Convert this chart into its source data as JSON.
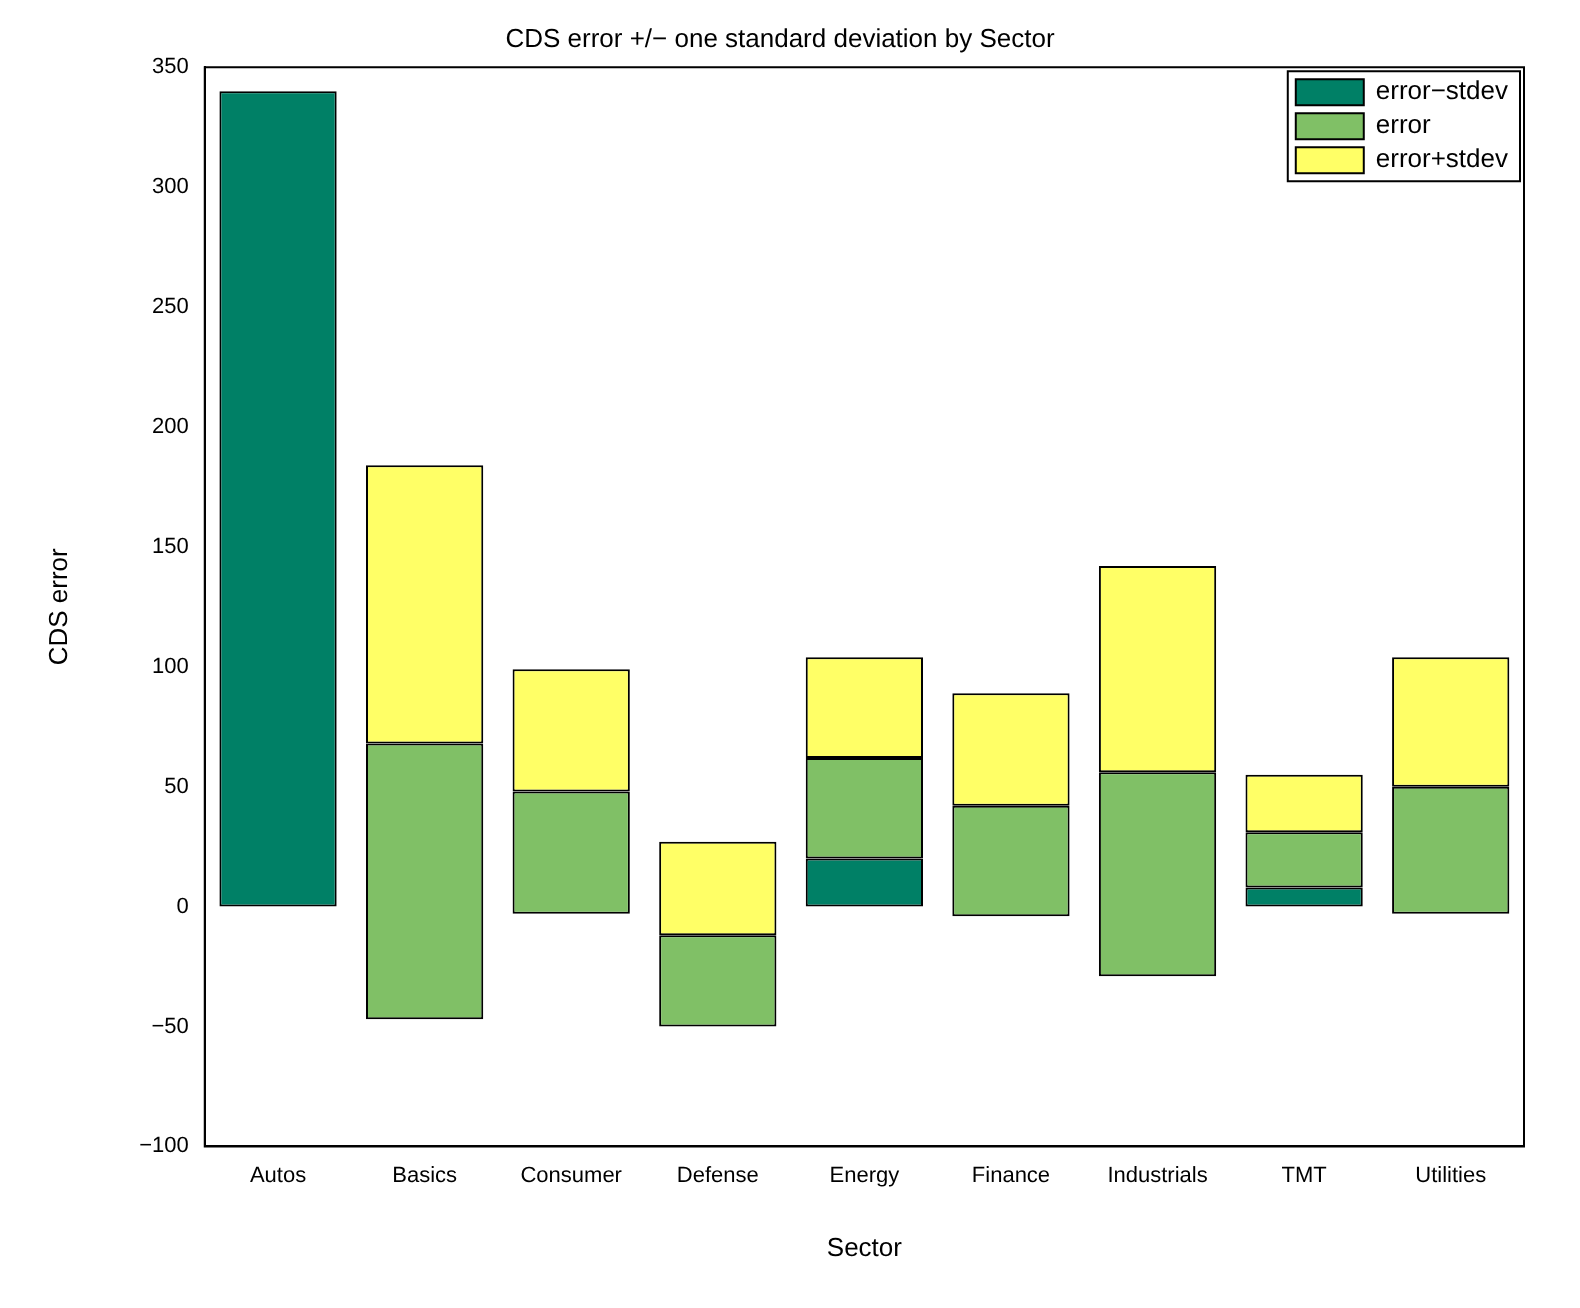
{
  "chart_data": {
    "type": "bar",
    "title": "CDS error +/− one standard deviation by Sector",
    "xlabel": "Sector",
    "ylabel": "CDS error",
    "categories": [
      "Autos",
      "Basics",
      "Consumer",
      "Defense",
      "Energy",
      "Finance",
      "Industrials",
      "TMT",
      "Utilities"
    ],
    "series": [
      {
        "name": "error−stdev",
        "color": "#008066",
        "base": [
          0,
          null,
          null,
          null,
          0,
          null,
          null,
          0,
          null
        ],
        "values": [
          340,
          null,
          null,
          null,
          20,
          null,
          null,
          8,
          null
        ]
      },
      {
        "name": "error",
        "color": "#80c066",
        "base": [
          null,
          -47,
          -3,
          -50,
          20,
          -4,
          -29,
          8,
          -3
        ],
        "values": [
          null,
          115,
          51,
          38,
          42,
          46,
          85,
          23,
          53
        ]
      },
      {
        "name": "error+stdev",
        "color": "#ffff66",
        "base": [
          null,
          68,
          48,
          -12,
          62,
          42,
          56,
          31,
          50
        ],
        "values": [
          null,
          116,
          51,
          39,
          42,
          47,
          86,
          24,
          54
        ]
      }
    ],
    "ylim": [
      -100,
      350
    ],
    "yticks": [
      -100,
      -50,
      0,
      50,
      100,
      150,
      200,
      250,
      300,
      350
    ],
    "grid": false,
    "legend": "top right"
  }
}
